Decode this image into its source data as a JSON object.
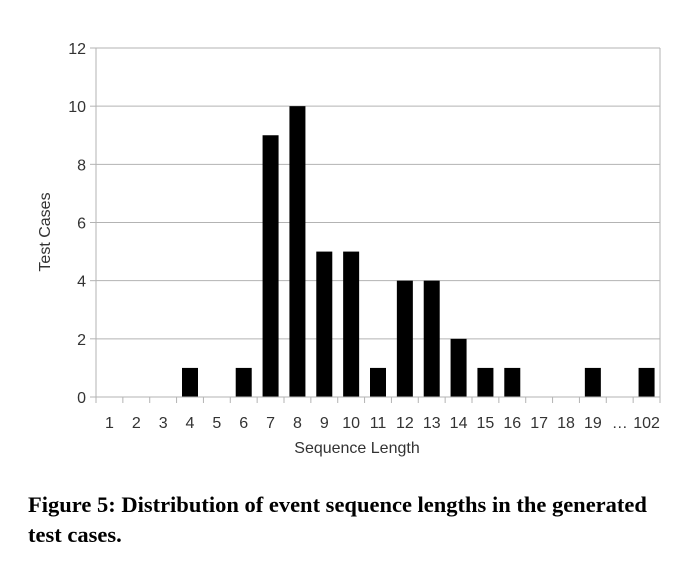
{
  "chart_data": {
    "type": "bar",
    "categories": [
      "1",
      "2",
      "3",
      "4",
      "5",
      "6",
      "7",
      "8",
      "9",
      "10",
      "11",
      "12",
      "13",
      "14",
      "15",
      "16",
      "17",
      "18",
      "19",
      "…",
      "102"
    ],
    "values": [
      0,
      0,
      0,
      1,
      0,
      1,
      9,
      10,
      5,
      5,
      1,
      4,
      4,
      2,
      1,
      1,
      0,
      0,
      1,
      0,
      1
    ],
    "xlabel": "Sequence Length",
    "ylabel": "Test Cases",
    "ylim": [
      0,
      12
    ],
    "yticks": [
      "0",
      "2",
      "4",
      "6",
      "8",
      "10",
      "12"
    ],
    "grid": true,
    "bar_color": "#000000",
    "grid_color": "#b3b3b3"
  },
  "caption": "Figure 5: Distribution of event sequence lengths in the generated test cases."
}
